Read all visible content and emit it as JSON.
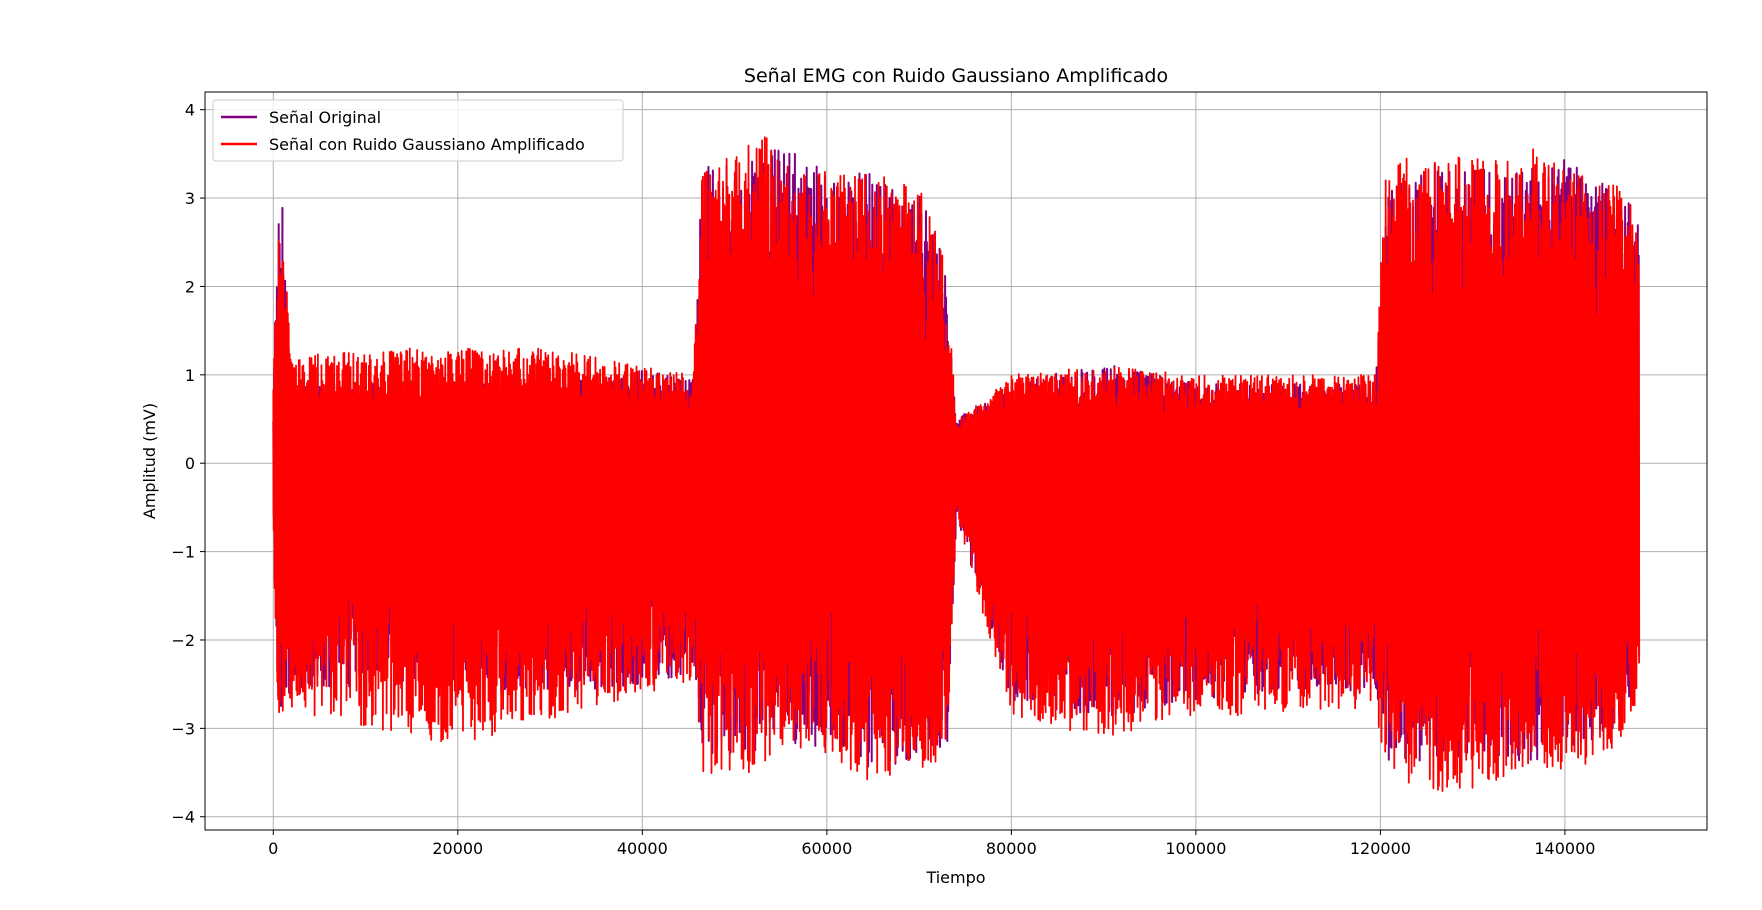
{
  "chart_data": {
    "type": "line",
    "title": "Señal EMG con Ruido Gaussiano Amplificado",
    "xlabel": "Tiempo",
    "ylabel": "Amplitud (mV)",
    "xlim": [
      -7400,
      155400
    ],
    "ylim": [
      -4.15,
      4.2
    ],
    "xticks": [
      0,
      20000,
      40000,
      60000,
      80000,
      100000,
      120000,
      140000
    ],
    "yticks": [
      -4,
      -3,
      -2,
      -1,
      0,
      1,
      2,
      3,
      4
    ],
    "xtick_labels": [
      "0",
      "20000",
      "40000",
      "60000",
      "80000",
      "100000",
      "120000",
      "140000"
    ],
    "ytick_labels": [
      "−4",
      "−3",
      "−2",
      "−1",
      "0",
      "1",
      "2",
      "3",
      "4"
    ],
    "grid": true,
    "legend_position": "upper left",
    "series": [
      {
        "name": "Señal Original",
        "color": "#800080",
        "envelope": {
          "x": [
            0,
            500,
            1000,
            2000,
            10000,
            20000,
            30000,
            40000,
            45500,
            46500,
            50000,
            55000,
            60000,
            65000,
            70000,
            73000,
            74000,
            80000,
            90000,
            100000,
            110000,
            119500,
            120500,
            125000,
            130000,
            135000,
            140000,
            145000,
            148000
          ],
          "upper": [
            0.95,
            2.7,
            2.9,
            0.9,
            0.9,
            0.9,
            0.9,
            1.05,
            0.95,
            3.4,
            3.4,
            3.6,
            3.3,
            3.3,
            3.1,
            2.2,
            0.5,
            0.9,
            1.15,
            0.9,
            0.9,
            0.9,
            3.1,
            3.4,
            3.4,
            3.3,
            3.5,
            3.2,
            2.8
          ],
          "lower": [
            -1.2,
            -2.9,
            -2.7,
            -2.6,
            -2.6,
            -2.6,
            -2.6,
            -2.5,
            -2.4,
            -3.4,
            -3.3,
            -3.2,
            -3.2,
            -3.5,
            -3.3,
            -3.2,
            -0.6,
            -2.7,
            -2.9,
            -2.7,
            -2.6,
            -2.6,
            -3.4,
            -3.4,
            -3.3,
            -3.4,
            -3.3,
            -3.1,
            -2.6
          ]
        }
      },
      {
        "name": "Señal con Ruido Gaussiano Amplificado",
        "color": "#ff0000",
        "envelope": {
          "x": [
            0,
            500,
            1000,
            2000,
            10000,
            20000,
            30000,
            40000,
            45500,
            46500,
            50000,
            53500,
            55000,
            60000,
            65000,
            70000,
            73000,
            74000,
            80000,
            90000,
            100000,
            110000,
            119500,
            120500,
            122000,
            125000,
            130000,
            135000,
            136000,
            140000,
            145000,
            148000
          ],
          "upper": [
            1.0,
            2.75,
            2.95,
            1.2,
            1.3,
            1.3,
            1.3,
            1.1,
            1.0,
            3.3,
            3.5,
            3.8,
            3.5,
            3.3,
            3.3,
            3.2,
            2.2,
            0.5,
            1.0,
            1.1,
            1.0,
            1.0,
            1.0,
            3.2,
            3.5,
            3.4,
            3.5,
            3.4,
            3.65,
            3.3,
            3.2,
            2.9
          ],
          "lower": [
            -1.2,
            -3.1,
            -2.8,
            -2.8,
            -3.0,
            -3.2,
            -2.9,
            -2.6,
            -2.5,
            -3.5,
            -3.6,
            -3.4,
            -3.2,
            -3.3,
            -3.65,
            -3.5,
            -3.3,
            -0.6,
            -2.9,
            -3.1,
            -2.9,
            -2.8,
            -2.8,
            -3.5,
            -3.6,
            -3.7,
            -3.75,
            -3.5,
            -3.4,
            -3.5,
            -3.3,
            -2.7
          ]
        }
      }
    ]
  }
}
